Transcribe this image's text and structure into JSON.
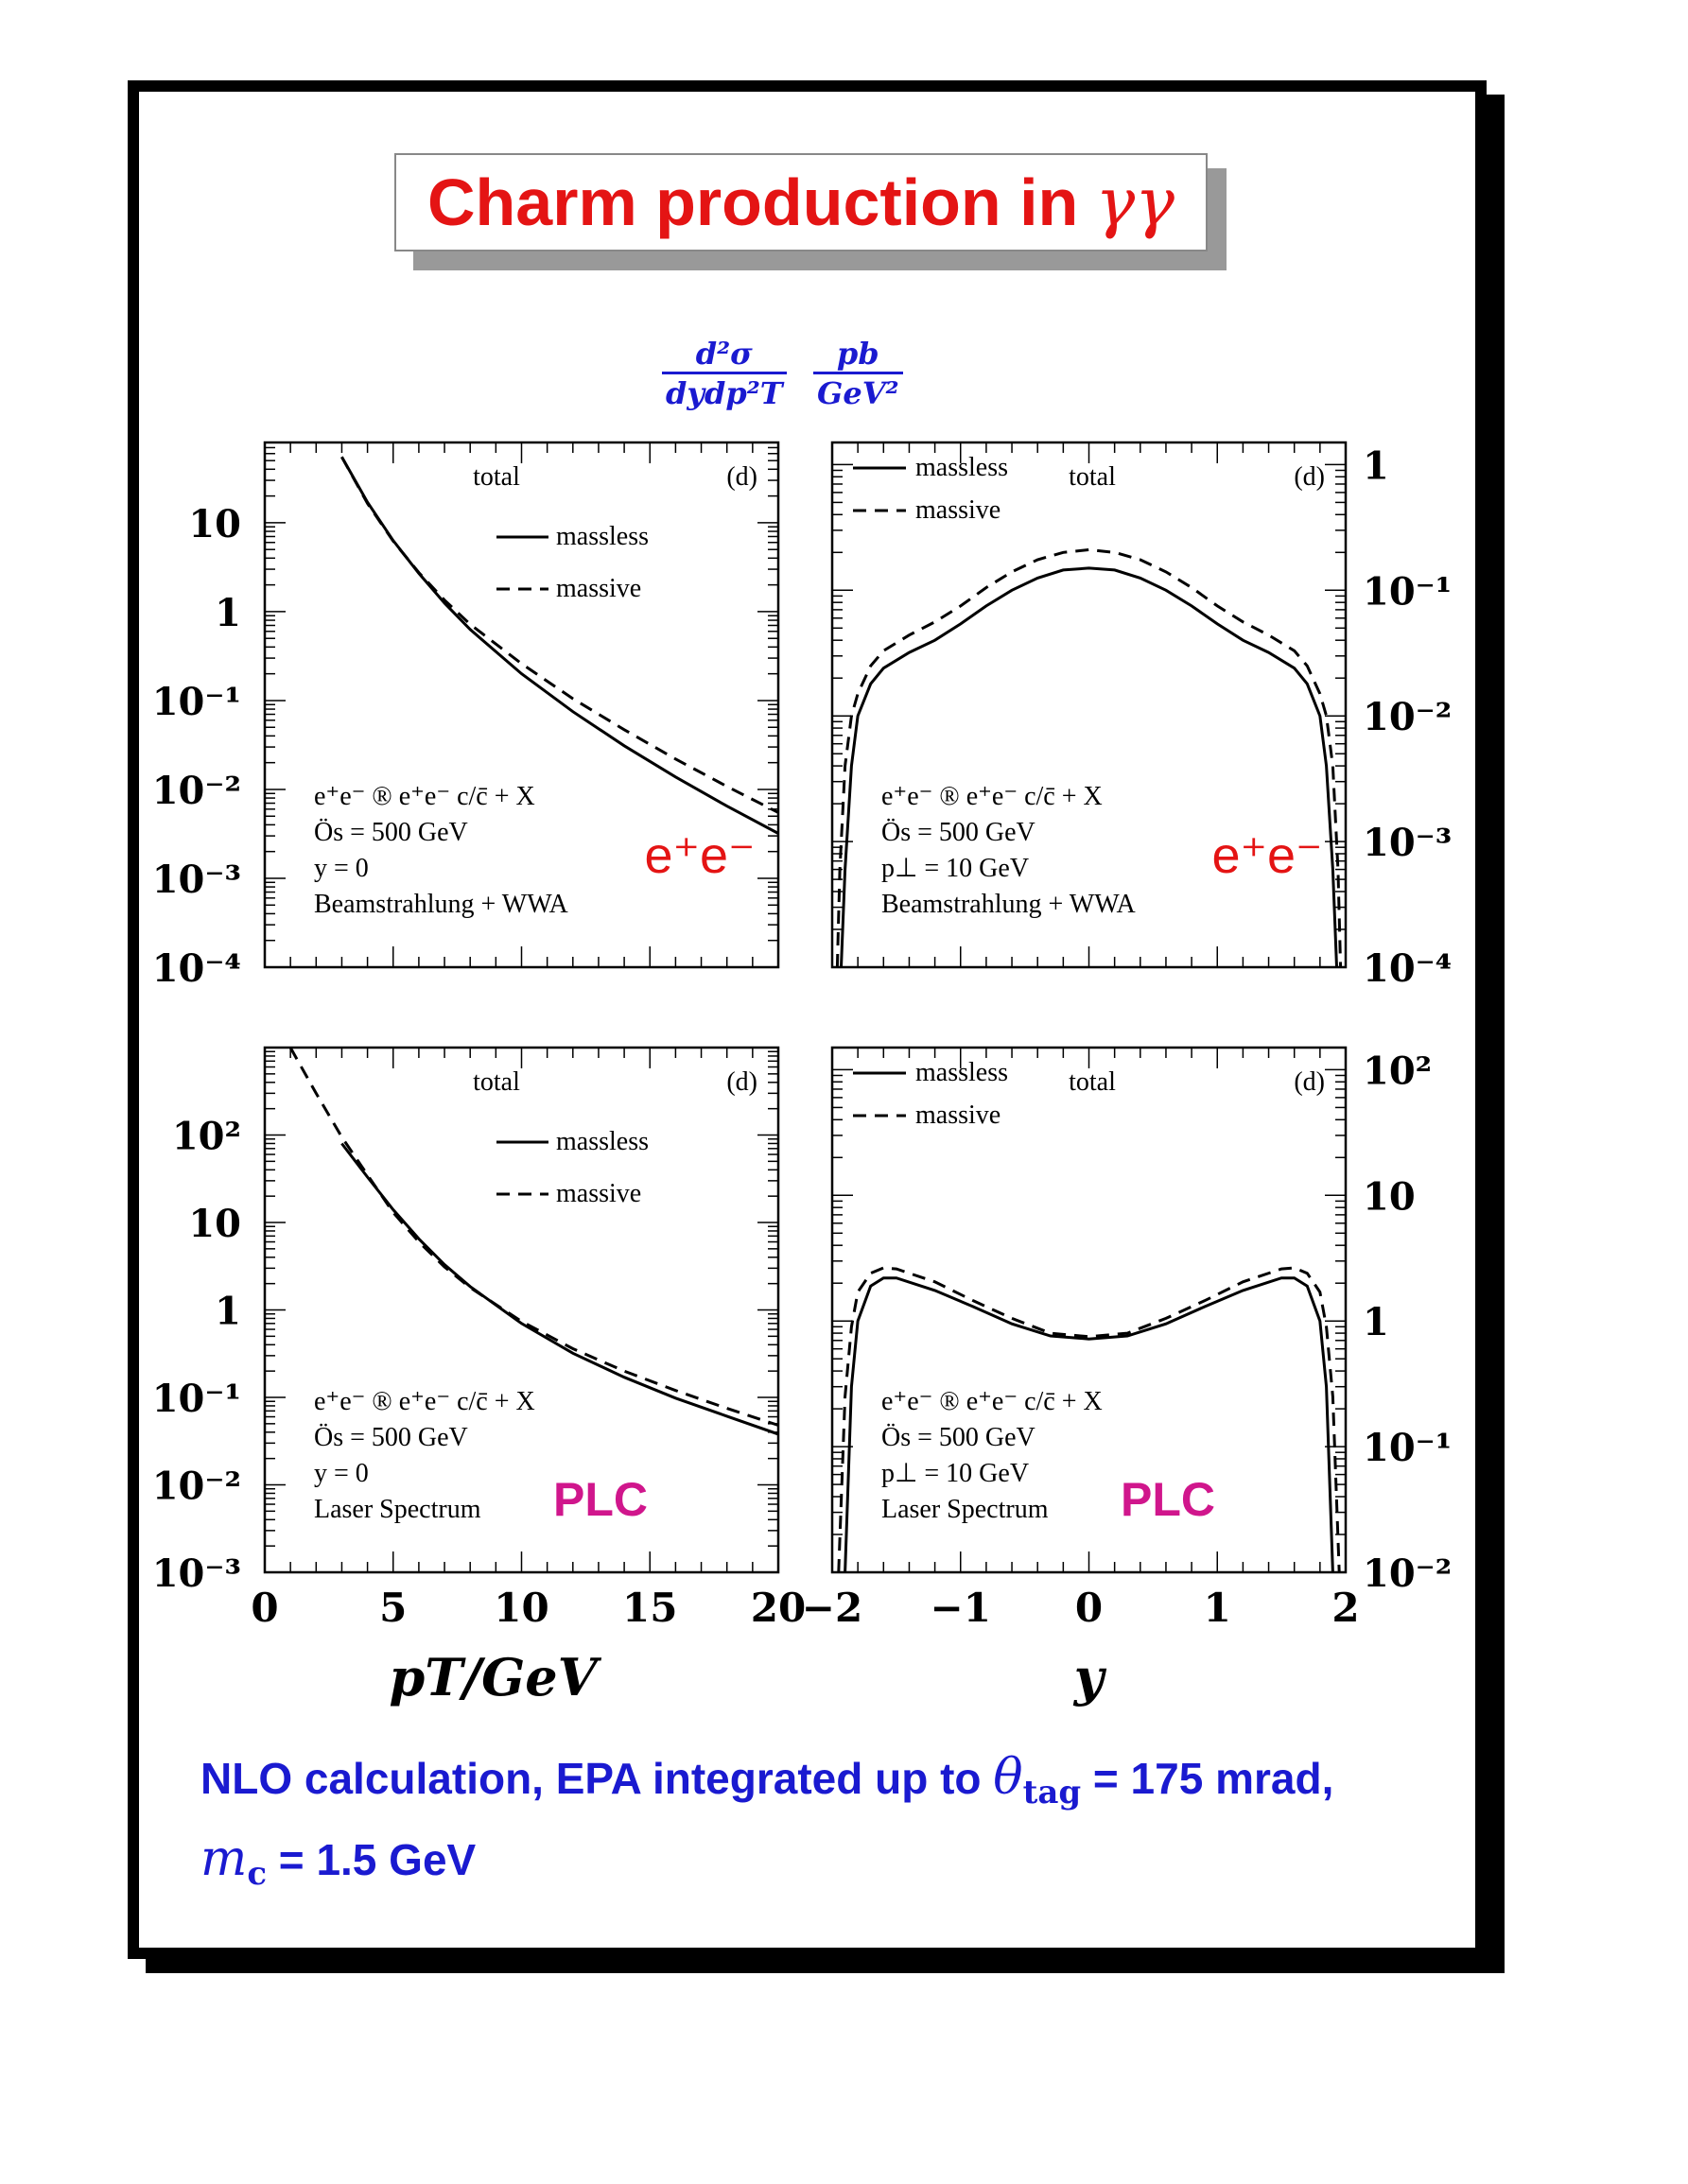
{
  "title": {
    "text": "Charm production in",
    "symbol": "γγ"
  },
  "ylabel": {
    "numerator": "d²σ",
    "denominator": "dydp²T",
    "unit_num": "pb",
    "unit_den": "GeV²"
  },
  "footer": {
    "line1_a": "NLO calculation, EPA integrated up to ",
    "theta": "θ",
    "theta_sub": "tag",
    "line1_b": " = 175 mrad,",
    "mc": "m",
    "mc_sub": "c",
    "line2_b": " = 1.5 GeV"
  },
  "colors": {
    "title": "#e41414",
    "blue": "#1a1ad0",
    "ee": "#e41414",
    "plc": "#d0168c"
  },
  "chart_data": [
    {
      "type": "line",
      "panel": "top-left",
      "xscale": "linear",
      "yscale": "log",
      "xlim": [
        0,
        20
      ],
      "ylim": [
        0.0001,
        80
      ],
      "x_ticks": [],
      "y_ticks": [
        "10",
        "1",
        "10⁻¹",
        "10⁻²",
        "10⁻³",
        "10⁻⁴"
      ],
      "y_tick_values": [
        10,
        1,
        0.1,
        0.01,
        0.001,
        0.0001
      ],
      "y_tick_side": "left",
      "corner": "(d)",
      "total": "total",
      "legend": {
        "placement": "top-center",
        "entries": [
          "massless",
          "massive"
        ]
      },
      "annotations": [
        "e⁺e⁻ ® e⁺e⁻ c/c̄ + X",
        "Ös = 500 GeV",
        "y = 0",
        "Beamstrahlung + WWA"
      ],
      "tag": "e⁺e⁻",
      "tag_color": "#e41414",
      "series": [
        {
          "name": "massless",
          "dash": "solid",
          "x": [
            3,
            4,
            5,
            6,
            7,
            8,
            10,
            12,
            14,
            16,
            18,
            20
          ],
          "y": [
            55,
            17,
            6.3,
            2.7,
            1.25,
            0.63,
            0.2,
            0.075,
            0.031,
            0.0138,
            0.0065,
            0.0032
          ]
        },
        {
          "name": "massive",
          "dash": "dashed",
          "x": [
            3,
            4,
            5,
            6,
            7,
            8,
            10,
            12,
            14,
            16,
            18,
            20
          ],
          "y": [
            55,
            16.5,
            6.2,
            2.75,
            1.35,
            0.72,
            0.26,
            0.105,
            0.047,
            0.022,
            0.0108,
            0.0055
          ]
        }
      ]
    },
    {
      "type": "line",
      "panel": "top-right",
      "xscale": "linear",
      "yscale": "log",
      "xlim": [
        -2,
        2
      ],
      "ylim": [
        0.0001,
        1.5
      ],
      "x_ticks": [],
      "y_ticks": [
        "1",
        "10⁻¹",
        "10⁻²",
        "10⁻³",
        "10⁻⁴"
      ],
      "y_tick_values": [
        1,
        0.1,
        0.01,
        0.001,
        0.0001
      ],
      "y_tick_side": "right",
      "corner": "(d)",
      "total": "total",
      "legend": {
        "placement": "top-left",
        "entries": [
          "massless",
          "massive"
        ]
      },
      "annotations": [
        "e⁺e⁻ ® e⁺e⁻ c/c̄ + X",
        "Ös = 500 GeV",
        "p⊥ = 10 GeV",
        "Beamstrahlung + WWA"
      ],
      "tag": "e⁺e⁻",
      "tag_color": "#e41414",
      "series": [
        {
          "name": "massless",
          "dash": "solid",
          "x": [
            -1.93,
            -1.9,
            -1.85,
            -1.8,
            -1.7,
            -1.6,
            -1.4,
            -1.2,
            -1.0,
            -0.8,
            -0.6,
            -0.4,
            -0.2,
            0,
            0.2,
            0.4,
            0.6,
            0.8,
            1.0,
            1.2,
            1.4,
            1.6,
            1.7,
            1.8,
            1.85,
            1.9,
            1.93
          ],
          "y": [
            0.0001,
            0.0006,
            0.004,
            0.01,
            0.018,
            0.024,
            0.032,
            0.04,
            0.054,
            0.075,
            0.1,
            0.125,
            0.145,
            0.15,
            0.145,
            0.125,
            0.1,
            0.075,
            0.054,
            0.04,
            0.032,
            0.024,
            0.018,
            0.01,
            0.004,
            0.0006,
            0.0001
          ]
        },
        {
          "name": "massive",
          "dash": "dashed",
          "x": [
            -1.96,
            -1.94,
            -1.9,
            -1.85,
            -1.8,
            -1.7,
            -1.6,
            -1.4,
            -1.2,
            -1.0,
            -0.8,
            -0.6,
            -0.4,
            -0.2,
            0,
            0.2,
            0.4,
            0.6,
            0.8,
            1.0,
            1.2,
            1.4,
            1.6,
            1.7,
            1.8,
            1.85,
            1.9,
            1.94,
            1.96
          ],
          "y": [
            0.0001,
            0.0006,
            0.004,
            0.01,
            0.015,
            0.025,
            0.033,
            0.044,
            0.056,
            0.075,
            0.105,
            0.14,
            0.175,
            0.2,
            0.21,
            0.2,
            0.175,
            0.14,
            0.105,
            0.075,
            0.056,
            0.044,
            0.033,
            0.025,
            0.015,
            0.01,
            0.004,
            0.0006,
            0.0001
          ]
        }
      ]
    },
    {
      "type": "line",
      "panel": "bottom-left",
      "xscale": "linear",
      "yscale": "log",
      "xlim": [
        0,
        20
      ],
      "ylim": [
        0.001,
        1000
      ],
      "x_ticks": [
        "0",
        "5",
        "10",
        "15",
        "20"
      ],
      "x_tick_values": [
        0,
        5,
        10,
        15,
        20
      ],
      "y_ticks": [
        "10²",
        "10",
        "1",
        "10⁻¹",
        "10⁻²",
        "10⁻³"
      ],
      "y_tick_values": [
        100,
        10,
        1,
        0.1,
        0.01,
        0.001
      ],
      "y_tick_side": "left",
      "xlabel": "pT/GeV",
      "corner": "(d)",
      "total": "total",
      "legend": {
        "placement": "top-center",
        "entries": [
          "massless",
          "massive"
        ]
      },
      "annotations": [
        "e⁺e⁻ ® e⁺e⁻ c/c̄ + X",
        "Ös = 500 GeV",
        "y = 0",
        "Laser Spectrum"
      ],
      "tag": "PLC",
      "tag_color": "#d0168c",
      "series": [
        {
          "name": "massless",
          "dash": "solid",
          "x": [
            3,
            4,
            5,
            6,
            7,
            8,
            10,
            12,
            14,
            16,
            18,
            20
          ],
          "y": [
            80,
            33,
            14,
            6.5,
            3.3,
            1.85,
            0.7,
            0.32,
            0.17,
            0.098,
            0.061,
            0.038
          ]
        },
        {
          "name": "massive",
          "dash": "dashed",
          "x": [
            1,
            2,
            3,
            4,
            5,
            6,
            7,
            8,
            10,
            12,
            14,
            16,
            18,
            20
          ],
          "y": [
            1000,
            300,
            95,
            35,
            13,
            6.0,
            3.1,
            1.8,
            0.74,
            0.36,
            0.2,
            0.12,
            0.075,
            0.048
          ]
        }
      ]
    },
    {
      "type": "line",
      "panel": "bottom-right",
      "xscale": "linear",
      "yscale": "log",
      "xlim": [
        -2,
        2
      ],
      "ylim": [
        0.01,
        150
      ],
      "x_ticks": [
        "−2",
        "−1",
        "0",
        "1",
        "2"
      ],
      "x_tick_values": [
        -2,
        -1,
        0,
        1,
        2
      ],
      "y_ticks": [
        "10²",
        "10",
        "1",
        "10⁻¹",
        "10⁻²"
      ],
      "y_tick_values": [
        100,
        10,
        1,
        0.1,
        0.01
      ],
      "y_tick_side": "right",
      "xlabel": "y",
      "corner": "(d)",
      "total": "total",
      "legend": {
        "placement": "top-left",
        "entries": [
          "massless",
          "massive"
        ]
      },
      "annotations": [
        "e⁺e⁻ ® e⁺e⁻ c/c̄ + X",
        "Ös = 500 GeV",
        "p⊥ = 10 GeV",
        "Laser Spectrum"
      ],
      "tag": "PLC",
      "tag_color": "#d0168c",
      "series": [
        {
          "name": "massless",
          "dash": "solid",
          "x": [
            -1.9,
            -1.85,
            -1.8,
            -1.7,
            -1.6,
            -1.5,
            -1.2,
            -0.9,
            -0.6,
            -0.3,
            0,
            0.3,
            0.6,
            0.9,
            1.2,
            1.5,
            1.6,
            1.7,
            1.8,
            1.85,
            1.9
          ],
          "y": [
            0.01,
            0.3,
            1.0,
            1.9,
            2.2,
            2.2,
            1.75,
            1.3,
            0.95,
            0.76,
            0.72,
            0.76,
            0.95,
            1.3,
            1.75,
            2.2,
            2.2,
            1.9,
            1.0,
            0.3,
            0.01
          ]
        },
        {
          "name": "massive",
          "dash": "dashed",
          "x": [
            -1.95,
            -1.9,
            -1.85,
            -1.8,
            -1.7,
            -1.6,
            -1.5,
            -1.2,
            -0.9,
            -0.6,
            -0.3,
            0,
            0.3,
            0.6,
            0.9,
            1.2,
            1.5,
            1.6,
            1.7,
            1.8,
            1.85,
            1.9,
            1.95
          ],
          "y": [
            0.01,
            0.25,
            0.9,
            1.7,
            2.4,
            2.65,
            2.6,
            2.05,
            1.45,
            1.05,
            0.8,
            0.75,
            0.8,
            1.05,
            1.45,
            2.05,
            2.6,
            2.65,
            2.4,
            1.7,
            0.9,
            0.25,
            0.01
          ]
        }
      ]
    }
  ]
}
